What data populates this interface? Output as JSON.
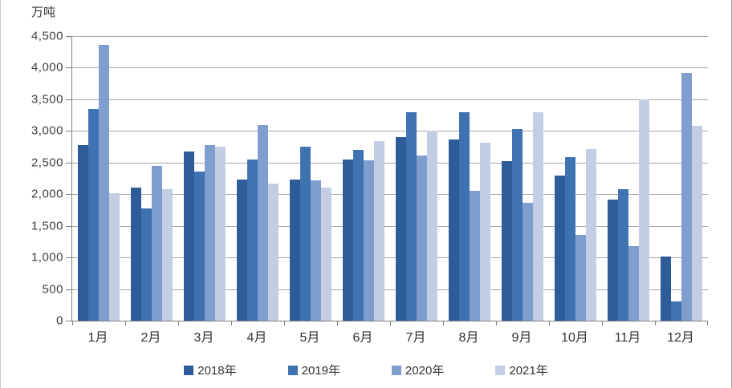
{
  "chart_data": {
    "type": "bar",
    "title": "",
    "ylabel": "万吨",
    "xlabel": "",
    "grid": true,
    "legend_position": "bottom",
    "ylim": [
      0,
      4500
    ],
    "ytick_step": 500,
    "ytick_labels": [
      "0",
      "500",
      "1,000",
      "1,500",
      "2,000",
      "2,500",
      "3,000",
      "3,500",
      "4,000",
      "4,500"
    ],
    "categories": [
      "1月",
      "2月",
      "3月",
      "4月",
      "5月",
      "6月",
      "7月",
      "8月",
      "9月",
      "10月",
      "11月",
      "12月"
    ],
    "series": [
      {
        "name": "2018年",
        "color": "#2e5c99",
        "values": [
          2780,
          2100,
          2670,
          2230,
          2230,
          2550,
          2900,
          2870,
          2520,
          2300,
          1910,
          1020
        ]
      },
      {
        "name": "2019年",
        "color": "#3f72b0",
        "values": [
          3350,
          1770,
          2360,
          2550,
          2750,
          2700,
          3300,
          3300,
          3030,
          2580,
          2080,
          300
        ]
      },
      {
        "name": "2020年",
        "color": "#7f9ecd",
        "values": [
          4360,
          2450,
          2780,
          3090,
          2220,
          2530,
          2610,
          2060,
          1860,
          1360,
          1180,
          3920
        ]
      },
      {
        "name": "2021年",
        "color": "#c3cde3",
        "values": [
          2020,
          2080,
          2750,
          2170,
          2100,
          2840,
          3010,
          2820,
          3300,
          2710,
          3500,
          3080
        ]
      }
    ],
    "axis_color": "#7f7f7f",
    "gridline_color": "#a6a6a6"
  }
}
